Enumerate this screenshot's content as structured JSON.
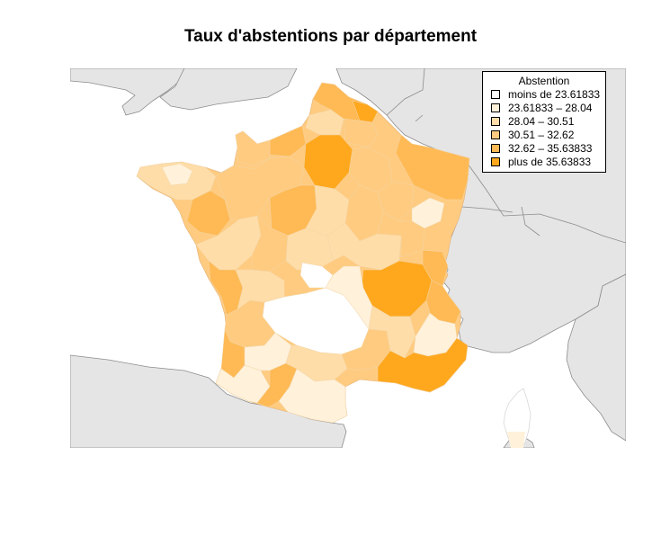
{
  "map": {
    "title": "Taux d'abstentions par département",
    "legend": {
      "title": "Abstention",
      "items": [
        {
          "label": "moins de 23.61833",
          "color": "#FFFFFF"
        },
        {
          "label": "23.61833 – 28.04",
          "color": "#FFF1DA"
        },
        {
          "label": "28.04 – 30.51",
          "color": "#FFDDA8"
        },
        {
          "label": "30.51 – 32.62",
          "color": "#FFCB80"
        },
        {
          "label": "32.62 – 35.63833",
          "color": "#FFBA55"
        },
        {
          "label": "plus de 35.63833",
          "color": "#FFA81E"
        }
      ]
    },
    "colors": {
      "neighbor_land": "#E5E5E5",
      "border": "#8C8C8C",
      "sea": "#FFFFFF"
    }
  }
}
